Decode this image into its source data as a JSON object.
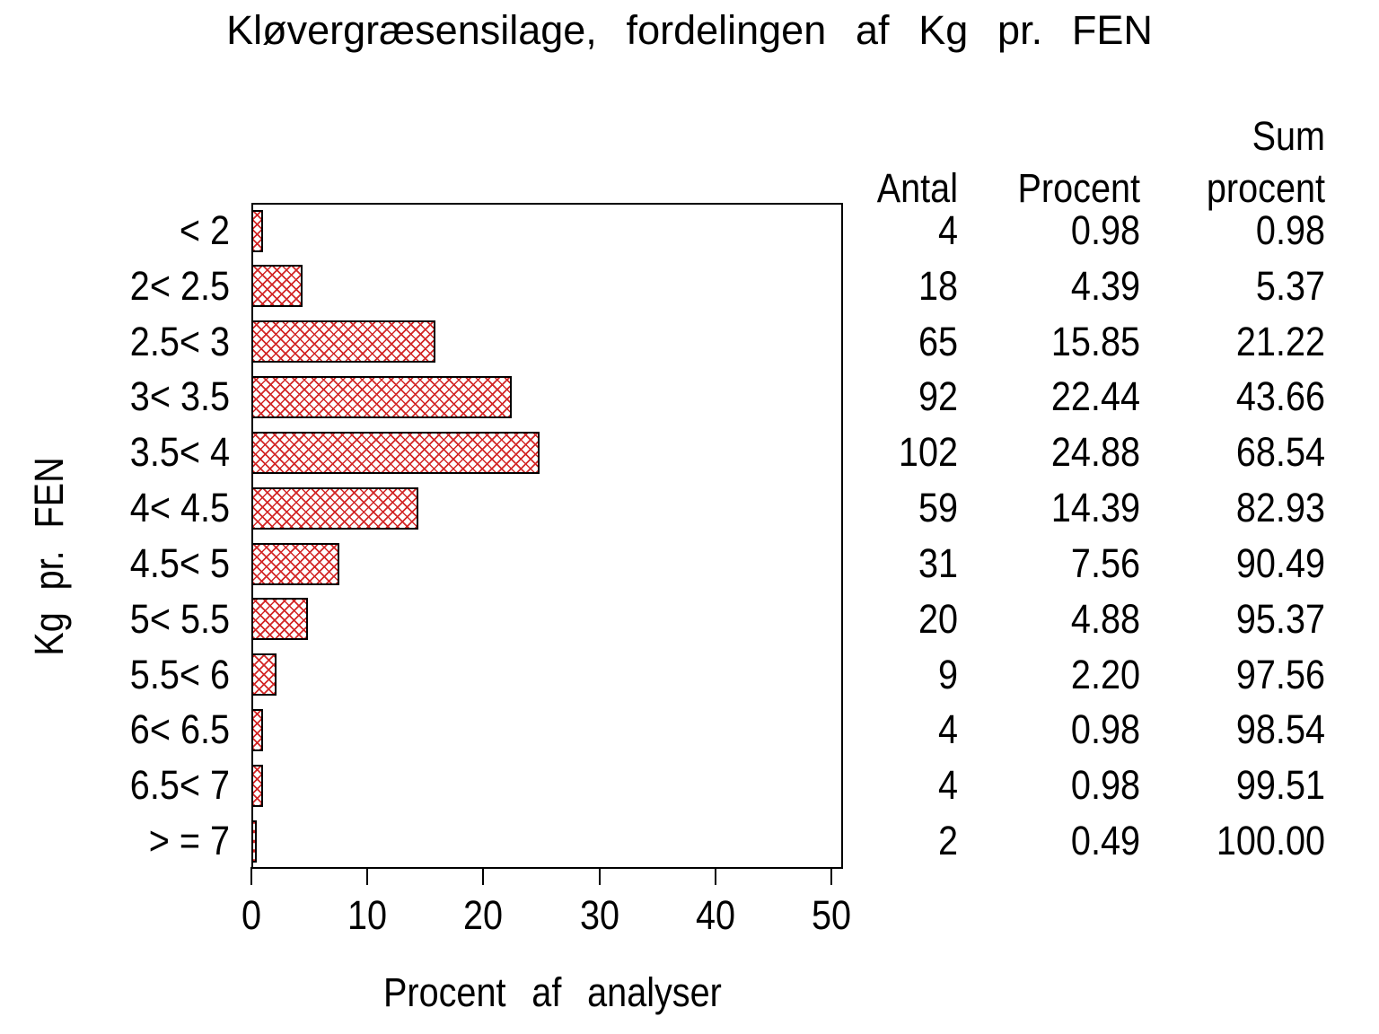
{
  "title": "Kløvergræsensilage, fordelingen af Kg pr. FEN",
  "chart_data": {
    "type": "bar",
    "orientation": "horizontal",
    "title": "Kløvergræsensilage, fordelingen af Kg pr. FEN",
    "xlabel": "Procent af analyser",
    "ylabel": "Kg pr. FEN",
    "categories": [
      "< 2",
      "2< 2.5",
      "2.5< 3",
      "3< 3.5",
      "3.5< 4",
      "4< 4.5",
      "4.5< 5",
      "5< 5.5",
      "5.5< 6",
      "6< 6.5",
      "6.5< 7",
      "> = 7"
    ],
    "values": [
      0.98,
      4.39,
      15.85,
      22.44,
      24.88,
      14.39,
      7.56,
      4.88,
      2.2,
      0.98,
      0.98,
      0.49
    ],
    "counts": [
      4,
      18,
      65,
      92,
      102,
      59,
      31,
      20,
      9,
      4,
      4,
      2
    ],
    "cumulative": [
      0.98,
      5.37,
      21.22,
      43.66,
      68.54,
      82.93,
      90.49,
      95.37,
      97.56,
      98.54,
      99.51,
      100.0
    ],
    "xlim": [
      0,
      50
    ],
    "xticks": [
      0,
      10,
      20,
      30,
      40,
      50
    ],
    "grid": "off",
    "bar_pattern": "crosshatch",
    "bar_pattern_color": "#d22626",
    "bar_border_color": "#000000",
    "background_color": "#ffffff"
  },
  "table": {
    "headers": {
      "antal": "Antal",
      "procent": "Procent",
      "sum_line1": "Sum",
      "sum_line2": "procent"
    },
    "rows": [
      {
        "antal": "4",
        "procent": "0.98",
        "sum": "0.98"
      },
      {
        "antal": "18",
        "procent": "4.39",
        "sum": "5.37"
      },
      {
        "antal": "65",
        "procent": "15.85",
        "sum": "21.22"
      },
      {
        "antal": "92",
        "procent": "22.44",
        "sum": "43.66"
      },
      {
        "antal": "102",
        "procent": "24.88",
        "sum": "68.54"
      },
      {
        "antal": "59",
        "procent": "14.39",
        "sum": "82.93"
      },
      {
        "antal": "31",
        "procent": "7.56",
        "sum": "90.49"
      },
      {
        "antal": "20",
        "procent": "4.88",
        "sum": "95.37"
      },
      {
        "antal": "9",
        "procent": "2.20",
        "sum": "97.56"
      },
      {
        "antal": "4",
        "procent": "0.98",
        "sum": "98.54"
      },
      {
        "antal": "4",
        "procent": "0.98",
        "sum": "99.51"
      },
      {
        "antal": "2",
        "procent": "0.49",
        "sum": "100.00"
      }
    ]
  }
}
